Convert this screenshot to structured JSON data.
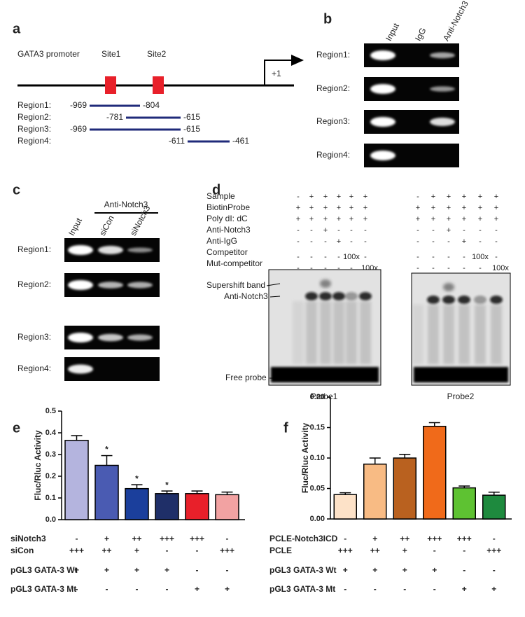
{
  "panel_a": {
    "letter": "a",
    "promoter": "GATA3 promoter",
    "sites": [
      "Site1",
      "Site2"
    ],
    "tss": "+1",
    "regions": [
      {
        "name": "Region1:",
        "start": "-969",
        "end": "-804"
      },
      {
        "name": "Region2:",
        "start": "-781",
        "end": "-615"
      },
      {
        "name": "Region3:",
        "start": "-969",
        "end": "-615"
      },
      {
        "name": "Region4:",
        "start": "-611",
        "end": "-461"
      }
    ]
  },
  "panel_b": {
    "letter": "b",
    "lanes": [
      "Input",
      "IgG",
      "Anti-Notch3"
    ],
    "regions": [
      "Region1:",
      "Region2:",
      "Region3:",
      "Region4:"
    ]
  },
  "panel_c": {
    "letter": "c",
    "antibody": "Anti-Notch3",
    "lanes": [
      "Input",
      "siCon",
      "siNotch3"
    ],
    "regions": [
      "Region1:",
      "Region2:",
      "Region3:",
      "Region4:"
    ]
  },
  "panel_d": {
    "letter": "d",
    "rows": [
      {
        "name": "Sample",
        "probe1": [
          "-",
          "+",
          "+",
          "+",
          "+",
          "+"
        ],
        "probe2": [
          "-",
          "+",
          "+",
          "+",
          "+",
          "+"
        ]
      },
      {
        "name": "BiotinProbe",
        "probe1": [
          "+",
          "+",
          "+",
          "+",
          "+",
          "+"
        ],
        "probe2": [
          "+",
          "+",
          "+",
          "+",
          "+",
          "+"
        ]
      },
      {
        "name": "Poly dI: dC",
        "probe1": [
          "+",
          "+",
          "+",
          "+",
          "+",
          "+"
        ],
        "probe2": [
          "+",
          "+",
          "+",
          "+",
          "+",
          "+"
        ]
      },
      {
        "name": "Anti-Notch3",
        "probe1": [
          "-",
          "-",
          "+",
          "-",
          "-",
          "-"
        ],
        "probe2": [
          "-",
          "-",
          "+",
          "-",
          "-",
          "-"
        ]
      },
      {
        "name": "Anti-IgG",
        "probe1": [
          "-",
          "-",
          "-",
          "+",
          "-",
          "-"
        ],
        "probe2": [
          "-",
          "-",
          "-",
          "+",
          "-",
          "-"
        ]
      },
      {
        "name": "Competitor",
        "probe1": [
          "-",
          "-",
          "-",
          "-",
          "100x",
          "-"
        ],
        "probe2": [
          "-",
          "-",
          "-",
          "-",
          "100x",
          "-"
        ]
      },
      {
        "name": "Mut-competitor",
        "probe1": [
          "-",
          "-",
          "-",
          "-",
          "-",
          "100x"
        ],
        "probe2": [
          "-",
          "-",
          "-",
          "-",
          "-",
          "100x"
        ]
      }
    ],
    "bands": [
      "Supershift band",
      "Anti-Notch3",
      "Free probe"
    ],
    "probes": [
      "Probe1",
      "Probe2"
    ]
  },
  "chart_data": [
    {
      "type": "bar",
      "letter": "e",
      "y_label": "Fluc/Rluc Activity",
      "values": [
        0.365,
        0.25,
        0.143,
        0.12,
        0.12,
        0.115
      ],
      "errors": [
        0.022,
        0.045,
        0.018,
        0.012,
        0.012,
        0.012
      ],
      "colors": [
        "#b4b4de",
        "#4a5bb2",
        "#1b3f9c",
        "#1f2f68",
        "#e8202a",
        "#f2a2a2"
      ],
      "significance": [
        null,
        "*",
        "*",
        "*",
        null,
        null
      ],
      "ylim": [
        0,
        0.5
      ],
      "yticks": [
        {
          "value": 0,
          "label": "0.0"
        },
        0.1,
        0.2,
        0.3,
        0.4,
        0.5
      ],
      "conditions": [
        {
          "name": "siNotch3",
          "values": [
            "-",
            "+",
            "++",
            "+++",
            "+++",
            "-"
          ]
        },
        {
          "name": "siCon",
          "values": [
            "+++",
            "++",
            "+",
            "-",
            "-",
            "+++"
          ]
        },
        {
          "name": "pGL3 GATA-3 Wt",
          "values": [
            "+",
            "+",
            "+",
            "+",
            "-",
            "-"
          ]
        },
        {
          "name": "pGL3 GATA-3 Mt",
          "values": [
            "-",
            "-",
            "-",
            "-",
            "+",
            "+"
          ]
        }
      ]
    },
    {
      "type": "bar",
      "letter": "f",
      "y_label": "Fluc/Rluc Activity",
      "values": [
        0.04,
        0.09,
        0.1,
        0.152,
        0.051,
        0.039
      ],
      "errors": [
        0.003,
        0.01,
        0.006,
        0.006,
        0.003,
        0.005
      ],
      "colors": [
        "#fde2c8",
        "#f8bb84",
        "#b9611f",
        "#f06a1a",
        "#5ec232",
        "#1e8a3e"
      ],
      "significance": [
        null,
        null,
        null,
        null,
        null,
        null
      ],
      "ylim": [
        0,
        0.2
      ],
      "yticks": [
        {
          "value": 0,
          "label": "0.00"
        },
        0.05,
        {
          "value": 0.1,
          "label": "0.10"
        },
        0.15,
        {
          "value": 0.2,
          "label": "0.20"
        }
      ],
      "conditions": [
        {
          "name": "PCLE-Notch3ICD",
          "values": [
            "-",
            "+",
            "++",
            "+++",
            "+++",
            "-"
          ]
        },
        {
          "name": "PCLE",
          "values": [
            "+++",
            "++",
            "+",
            "-",
            "-",
            "+++"
          ]
        },
        {
          "name": "pGL3 GATA-3 Wt",
          "values": [
            "+",
            "+",
            "+",
            "+",
            "-",
            "-"
          ]
        },
        {
          "name": "pGL3 GATA-3 Mt",
          "values": [
            "-",
            "-",
            "-",
            "-",
            "+",
            "+"
          ]
        }
      ]
    }
  ]
}
